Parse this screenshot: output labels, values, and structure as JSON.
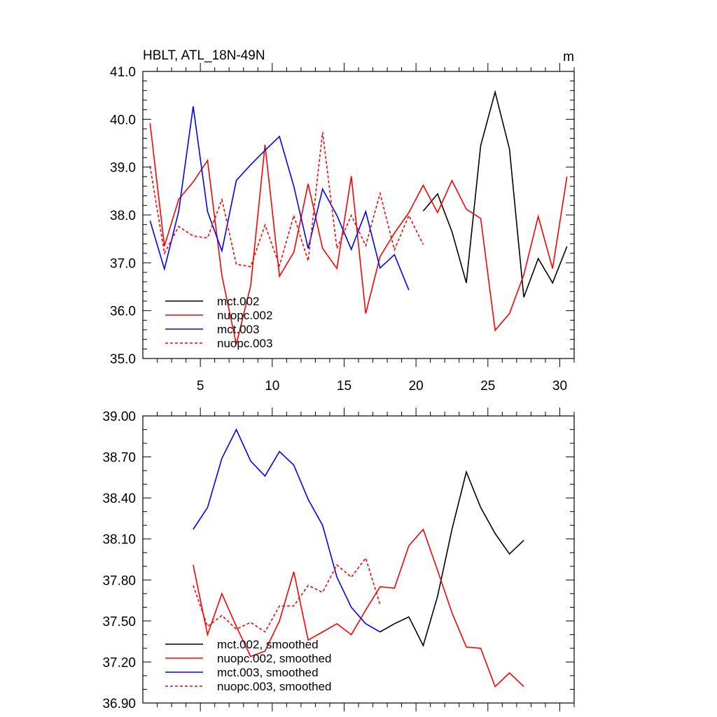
{
  "chart_data": [
    {
      "type": "line",
      "title": "HBLT, ATL_18N-49N",
      "units": "m",
      "xlim": [
        1,
        31
      ],
      "ylim": [
        35.0,
        41.0
      ],
      "xticks": [
        5,
        10,
        15,
        20,
        25,
        30
      ],
      "yticks": [
        35.0,
        36.0,
        37.0,
        38.0,
        39.0,
        40.0,
        41.0
      ],
      "ytick_labels": [
        "35.0",
        "36.0",
        "37.0",
        "38.0",
        "39.0",
        "40.0",
        "41.0"
      ],
      "legend_position": "bottom-left",
      "series": [
        {
          "name": "mct.002",
          "color": "#000000",
          "dashed": false,
          "x": [
            20.5,
            21.5,
            22.5,
            23.5,
            24.5,
            25.5,
            26.5,
            27.5,
            28.5,
            29.5,
            30.5
          ],
          "values": [
            38.08,
            38.44,
            37.65,
            36.58,
            39.45,
            40.57,
            39.38,
            36.28,
            37.09,
            36.58,
            37.34
          ]
        },
        {
          "name": "nuopc.002",
          "color": "#ff0000",
          "dashed": false,
          "x": [
            1.5,
            2.5,
            3.5,
            4.5,
            5.5,
            6.5,
            7.5,
            8.5,
            9.5,
            10.5,
            11.5,
            12.5,
            13.5,
            14.5,
            15.5,
            16.5,
            17.5,
            18.5,
            19.5,
            20.5,
            21.5,
            22.5,
            23.5,
            24.5,
            25.5,
            26.5,
            27.5,
            28.5,
            29.5,
            30.5
          ],
          "values": [
            39.92,
            37.35,
            38.33,
            38.69,
            39.14,
            36.73,
            35.3,
            36.52,
            39.47,
            36.72,
            37.22,
            38.65,
            37.3,
            36.88,
            38.81,
            35.94,
            37.13,
            37.62,
            38.05,
            38.62,
            38.05,
            38.72,
            38.12,
            37.93,
            35.59,
            35.94,
            36.75,
            37.97,
            36.88,
            38.8
          ]
        },
        {
          "name": "mct.003",
          "color": "#0000ff",
          "dashed": false,
          "x": [
            1.5,
            2.5,
            3.5,
            4.5,
            5.5,
            6.5,
            7.5,
            8.5,
            9.5,
            10.5,
            11.5,
            12.5,
            13.5,
            14.5,
            15.5,
            16.5,
            17.5,
            18.5,
            19.5
          ],
          "values": [
            37.88,
            36.87,
            38.08,
            40.27,
            38.07,
            37.25,
            38.72,
            39.05,
            39.35,
            39.64,
            38.6,
            37.3,
            38.54,
            37.99,
            37.28,
            38.07,
            36.89,
            37.17,
            36.43
          ]
        },
        {
          "name": "nuopc.003",
          "color": "#ff0000",
          "dashed": true,
          "x": [
            1.5,
            2.5,
            3.5,
            4.5,
            5.5,
            6.5,
            7.5,
            8.5,
            9.5,
            10.5,
            11.5,
            12.5,
            13.5,
            14.5,
            15.5,
            16.5,
            17.5,
            18.5,
            19.5,
            20.5
          ],
          "values": [
            39.02,
            37.2,
            37.76,
            37.56,
            37.52,
            38.32,
            36.97,
            36.92,
            37.79,
            36.94,
            37.99,
            37.04,
            39.73,
            37.3,
            37.99,
            37.36,
            38.45,
            37.27,
            37.99,
            37.38
          ]
        }
      ]
    },
    {
      "type": "line",
      "title": "",
      "xlim": [
        1,
        31
      ],
      "ylim": [
        36.9,
        39.0
      ],
      "xticks": [
        5,
        10,
        15,
        20,
        25,
        30
      ],
      "yticks": [
        36.9,
        37.2,
        37.5,
        37.8,
        38.1,
        38.4,
        38.7,
        39.0
      ],
      "ytick_labels": [
        "36.90",
        "37.20",
        "37.50",
        "37.80",
        "38.10",
        "38.40",
        "38.70",
        "39.00"
      ],
      "legend_position": "bottom-left",
      "series": [
        {
          "name": "mct.002, smoothed",
          "color": "#000000",
          "dashed": false,
          "x": [
            17.5,
            18.5,
            19.5,
            20.5,
            21.5,
            22.5,
            23.5,
            24.5,
            25.5,
            26.5,
            27.5
          ],
          "values": [
            37.42,
            37.48,
            37.53,
            37.32,
            37.68,
            38.17,
            38.59,
            38.33,
            38.14,
            37.99,
            38.09
          ]
        },
        {
          "name": "nuopc.002, smoothed",
          "color": "#ff0000",
          "dashed": false,
          "x": [
            4.5,
            5.5,
            6.5,
            7.5,
            8.5,
            9.5,
            10.5,
            11.5,
            12.5,
            13.5,
            14.5,
            15.5,
            16.5,
            17.5,
            18.5,
            19.5,
            20.5,
            21.5,
            22.5,
            23.5,
            24.5,
            25.5,
            26.5,
            27.5
          ],
          "values": [
            37.91,
            37.4,
            37.7,
            37.46,
            37.24,
            37.28,
            37.5,
            37.86,
            37.36,
            37.42,
            37.48,
            37.4,
            37.58,
            37.75,
            37.74,
            38.05,
            38.17,
            37.87,
            37.56,
            37.31,
            37.3,
            37.02,
            37.12,
            37.02
          ]
        },
        {
          "name": "mct.003, smoothed",
          "color": "#0000ff",
          "dashed": false,
          "x": [
            4.5,
            5.5,
            6.5,
            7.5,
            8.5,
            9.5,
            10.5,
            11.5,
            12.5,
            13.5,
            14.5,
            15.5,
            16.5,
            17.5
          ],
          "values": [
            38.17,
            38.33,
            38.69,
            38.9,
            38.67,
            38.56,
            38.74,
            38.64,
            38.39,
            38.2,
            37.82,
            37.6,
            37.48,
            37.42
          ]
        },
        {
          "name": "nuopc.003, smoothed",
          "color": "#ff0000",
          "dashed": true,
          "x": [
            4.5,
            5.5,
            6.5,
            7.5,
            8.5,
            9.5,
            10.5,
            11.5,
            12.5,
            13.5,
            14.5,
            15.5,
            16.5,
            17.5
          ],
          "values": [
            37.76,
            37.46,
            37.54,
            37.44,
            37.49,
            37.42,
            37.61,
            37.61,
            37.76,
            37.71,
            37.91,
            37.82,
            37.96,
            37.62
          ]
        }
      ]
    }
  ]
}
